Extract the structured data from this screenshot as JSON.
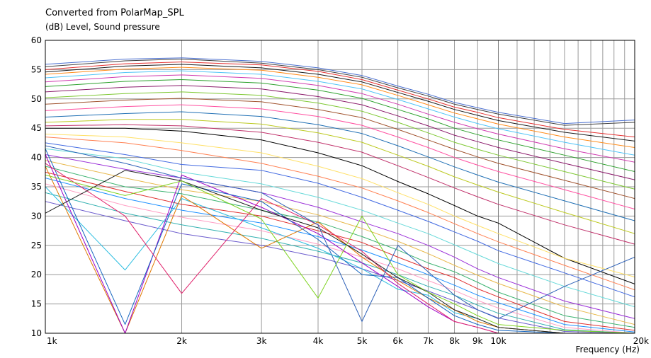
{
  "chart_data": {
    "type": "line",
    "title": "Converted from PolarMap_SPL",
    "ylabel": "(dB)  Level, Sound pressure",
    "xlabel": "Frequency  (Hz)",
    "x_scale": "log",
    "xlim": [
      1000,
      20000
    ],
    "ylim": [
      10,
      60
    ],
    "grid": true,
    "legend": "none",
    "y_ticks": [
      10,
      15,
      20,
      25,
      30,
      35,
      40,
      45,
      50,
      55,
      60
    ],
    "x_ticks": [
      {
        "value": 1000,
        "label": "1k"
      },
      {
        "value": 2000,
        "label": "2k"
      },
      {
        "value": 3000,
        "label": "3k"
      },
      {
        "value": 4000,
        "label": "4k"
      },
      {
        "value": 5000,
        "label": "5k"
      },
      {
        "value": 6000,
        "label": "6k"
      },
      {
        "value": 7000,
        "label": "7k"
      },
      {
        "value": 8000,
        "label": "8k"
      },
      {
        "value": 9000,
        "label": "9k"
      },
      {
        "value": 10000,
        "label": "10k"
      },
      {
        "value": 20000,
        "label": "20k"
      }
    ],
    "x": [
      1000,
      1500,
      2000,
      3000,
      4000,
      5000,
      6000,
      7000,
      8000,
      9000,
      10000,
      14000,
      20000
    ],
    "series": [
      {
        "color": "#4a6fd0",
        "values": [
          55.9,
          56.8,
          57.0,
          56.4,
          55.3,
          54.0,
          52.2,
          50.8,
          49.4,
          48.5,
          47.7,
          45.8,
          46.4
        ]
      },
      {
        "color": "#404040",
        "values": [
          55.5,
          56.5,
          56.8,
          56.1,
          55.0,
          53.7,
          51.9,
          50.5,
          49.1,
          48.2,
          47.4,
          45.5,
          46.0
        ]
      },
      {
        "color": "#e53030",
        "values": [
          55.0,
          56.0,
          56.3,
          55.8,
          54.7,
          53.3,
          51.5,
          50.0,
          48.6,
          47.7,
          46.8,
          44.8,
          43.5
        ]
      },
      {
        "color": "#1a1a1a",
        "values": [
          54.6,
          55.6,
          55.9,
          55.3,
          54.2,
          52.9,
          51.1,
          49.6,
          48.2,
          47.2,
          46.3,
          44.3,
          42.8
        ]
      },
      {
        "color": "#ff8c1a",
        "values": [
          54.2,
          55.1,
          55.4,
          54.9,
          53.7,
          52.4,
          50.6,
          49.0,
          47.6,
          46.6,
          45.7,
          43.5,
          41.7
        ]
      },
      {
        "color": "#4fc3f7",
        "values": [
          53.6,
          54.5,
          54.8,
          54.2,
          53.0,
          51.7,
          49.9,
          48.3,
          46.9,
          45.8,
          44.9,
          42.6,
          40.4
        ]
      },
      {
        "color": "#d03ab0",
        "values": [
          52.9,
          53.8,
          54.1,
          53.5,
          52.3,
          50.9,
          49.1,
          47.4,
          46.0,
          44.9,
          44.0,
          41.5,
          39.2
        ]
      },
      {
        "color": "#2ca02c",
        "values": [
          52.1,
          53.0,
          53.3,
          52.7,
          51.5,
          50.1,
          48.2,
          46.6,
          45.0,
          43.9,
          43.0,
          40.4,
          37.6
        ]
      },
      {
        "color": "#8b1a6b",
        "values": [
          51.2,
          52.0,
          52.3,
          51.7,
          50.4,
          49.0,
          47.1,
          45.4,
          43.8,
          42.7,
          41.7,
          39.0,
          36.2
        ]
      },
      {
        "color": "#7ec832",
        "values": [
          50.2,
          50.9,
          51.2,
          50.6,
          49.3,
          47.9,
          46.0,
          44.2,
          42.6,
          41.4,
          40.4,
          37.6,
          34.6
        ]
      },
      {
        "color": "#a0522d",
        "values": [
          49.1,
          49.8,
          50.1,
          49.5,
          48.2,
          46.8,
          44.8,
          43.0,
          41.4,
          40.1,
          39.0,
          36.1,
          33.0
        ]
      },
      {
        "color": "#ff4fa0",
        "values": [
          48.0,
          48.7,
          49.0,
          48.3,
          47.0,
          45.5,
          43.5,
          41.7,
          40.0,
          38.7,
          37.6,
          34.5,
          31.2
        ]
      },
      {
        "color": "#1f6fb4",
        "values": [
          46.9,
          47.5,
          47.8,
          47.0,
          45.6,
          44.1,
          42.0,
          40.1,
          38.4,
          37.0,
          35.8,
          32.6,
          29.2
        ]
      },
      {
        "color": "#bcc920",
        "values": [
          46.0,
          46.5,
          46.5,
          45.7,
          44.2,
          42.6,
          40.4,
          38.5,
          36.7,
          35.3,
          34.1,
          30.6,
          27.0
        ]
      },
      {
        "color": "#c0306a",
        "values": [
          45.4,
          45.6,
          45.4,
          44.3,
          42.6,
          40.9,
          38.6,
          36.6,
          34.8,
          33.3,
          32.0,
          28.5,
          25.2
        ]
      },
      {
        "color": "#000000",
        "values": [
          45.0,
          45.0,
          44.5,
          43.0,
          40.8,
          38.6,
          35.9,
          33.8,
          31.8,
          30.0,
          28.8,
          22.8,
          18.4
        ]
      },
      {
        "color": "#ffe066",
        "values": [
          44.0,
          43.5,
          42.5,
          40.8,
          38.5,
          36.4,
          34.0,
          32.0,
          30.0,
          28.4,
          27.0,
          22.8,
          19.6
        ]
      },
      {
        "color": "#ff7f50",
        "values": [
          43.5,
          42.5,
          41.2,
          39.0,
          36.8,
          34.8,
          32.6,
          30.6,
          28.7,
          27.0,
          25.6,
          21.6,
          17.4
        ]
      },
      {
        "color": "#4169e1",
        "values": [
          42.5,
          40.5,
          38.8,
          37.8,
          35.6,
          33.2,
          31.0,
          29.1,
          27.3,
          25.7,
          24.1,
          20.3,
          16.2
        ]
      },
      {
        "color": "#66d9d9",
        "values": [
          41.5,
          39.8,
          37.5,
          35.5,
          33.2,
          31.0,
          28.8,
          27.0,
          25.1,
          23.4,
          21.9,
          18.0,
          14.5
        ]
      },
      {
        "color": "#9b30d9",
        "values": [
          40.5,
          38.0,
          36.5,
          34.0,
          31.5,
          29.0,
          27.0,
          25.0,
          23.0,
          21.0,
          19.5,
          15.5,
          12.5
        ]
      },
      {
        "color": "#e8b84a",
        "values": [
          39.5,
          36.5,
          34.5,
          32.5,
          30.2,
          27.9,
          25.7,
          23.6,
          21.6,
          19.9,
          18.5,
          14.5,
          11.5
        ]
      },
      {
        "color": "#3cb371",
        "values": [
          38.5,
          35.0,
          33.8,
          31.0,
          29.0,
          26.5,
          24.2,
          22.0,
          20.5,
          18.7,
          17.0,
          13.0,
          11.0
        ]
      },
      {
        "color": "#e03030",
        "values": [
          37.5,
          34.2,
          32.0,
          30.0,
          27.5,
          25.5,
          23.0,
          21.0,
          19.5,
          17.6,
          16.2,
          12.0,
          10.5
        ]
      },
      {
        "color": "#1e90ff",
        "values": [
          36.5,
          33.0,
          31.0,
          28.8,
          26.5,
          24.2,
          22.0,
          20.0,
          18.2,
          16.5,
          15.2,
          11.5,
          10.2
        ]
      },
      {
        "color": "#ff9ec4",
        "values": [
          35.5,
          31.8,
          29.8,
          27.5,
          25.2,
          23.0,
          21.0,
          19.0,
          17.3,
          15.6,
          14.3,
          11.0,
          10.0
        ]
      },
      {
        "color": "#30b0b0",
        "values": [
          34.0,
          30.5,
          28.5,
          26.2,
          24.0,
          22.0,
          20.0,
          18.0,
          16.5,
          14.8,
          13.4,
          10.6,
          10.0
        ]
      },
      {
        "color": "#6a5acd",
        "values": [
          32.5,
          29.2,
          27.0,
          25.0,
          23.0,
          21.0,
          19.0,
          17.2,
          15.5,
          14.0,
          12.6,
          10.3,
          10.0
        ]
      }
    ],
    "notches": [
      {
        "color": "#2bbde0",
        "values": [
          35.0,
          20.8,
          33.0,
          28.0,
          24.5,
          21.0,
          17.5,
          16.5,
          13.5,
          12.5,
          11.0,
          10.0,
          10.0
        ]
      },
      {
        "color": "#e07800",
        "values": [
          38.5,
          10.0,
          33.5,
          24.5,
          29.0,
          23.0,
          19.0,
          16.0,
          14.0,
          12.0,
          11.0,
          10.0,
          10.0
        ]
      },
      {
        "color": "#9b00c8",
        "values": [
          40.5,
          10.0,
          37.0,
          31.5,
          27.0,
          22.0,
          18.0,
          14.5,
          12.0,
          11.0,
          10.0,
          10.0,
          10.0
        ]
      },
      {
        "color": "#1565c0",
        "values": [
          41.5,
          11.5,
          35.5,
          32.5,
          26.0,
          20.0,
          19.5,
          16.0,
          13.0,
          11.5,
          10.5,
          10.0,
          10.0
        ]
      },
      {
        "color": "#e0206a",
        "values": [
          39.0,
          30.0,
          16.8,
          33.0,
          28.5,
          24.0,
          18.5,
          15.0,
          12.0,
          11.0,
          10.0,
          10.0,
          10.0
        ]
      },
      {
        "color": "#202020",
        "values": [
          30.5,
          37.8,
          36.0,
          31.0,
          28.0,
          23.5,
          19.5,
          17.0,
          14.0,
          12.5,
          11.0,
          10.0,
          10.0
        ]
      },
      {
        "color": "#7ed321",
        "values": [
          37.0,
          33.5,
          36.0,
          29.5,
          16.0,
          30.0,
          20.0,
          17.0,
          15.0,
          13.0,
          11.5,
          10.5,
          10.0
        ]
      },
      {
        "color": "#2f62b8",
        "values": [
          42.0,
          39.0,
          36.5,
          34.0,
          28.5,
          12.0,
          25.0,
          20.5,
          16.5,
          14.0,
          12.5,
          18.0,
          23.0
        ]
      }
    ]
  }
}
